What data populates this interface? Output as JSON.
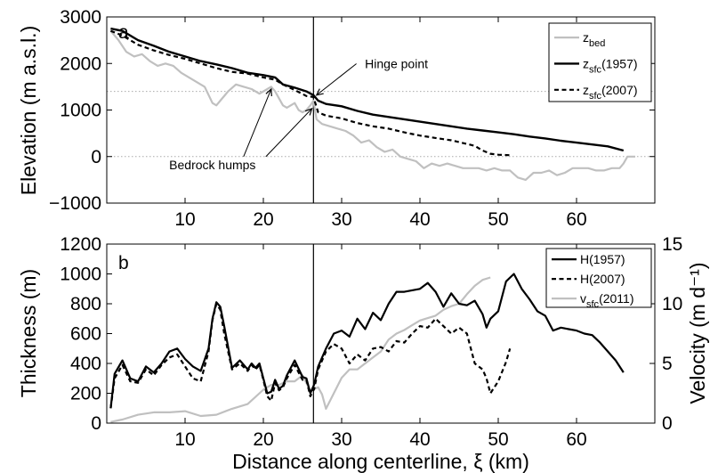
{
  "chart_data": [
    {
      "panel_label": "a",
      "type": "line",
      "xlabel": "",
      "ylabel": "Elevation (m a.s.l.)",
      "xlim": [
        0,
        70
      ],
      "ylim": [
        -1000,
        3000
      ],
      "xticks": [
        10,
        20,
        30,
        40,
        50,
        60
      ],
      "yticks": [
        -1000,
        0,
        1000,
        2000,
        3000
      ],
      "reference_lines": [
        {
          "axis": "y",
          "value": 1400,
          "style": "dotted",
          "color": "#aaaaaa"
        },
        {
          "axis": "y",
          "value": 0,
          "style": "dotted",
          "color": "#aaaaaa"
        },
        {
          "axis": "x",
          "value": 26.4,
          "style": "solid",
          "color": "#000000"
        }
      ],
      "annotations": [
        {
          "text": "Hinge point",
          "x": 37,
          "y": 1900,
          "arrow_to": {
            "x": 26.8,
            "y": 1320
          }
        },
        {
          "text": "Bedrock humps",
          "x": 13.5,
          "y": -270,
          "arrows_to": [
            {
              "x": 21,
              "y": 1450
            },
            {
              "x": 26.2,
              "y": 1030
            }
          ]
        }
      ],
      "legend": {
        "position": "top-right",
        "entries": [
          {
            "base": "z",
            "sub": "bed",
            "tail": ""
          },
          {
            "base": "z",
            "sub": "sfc",
            "tail": "(1957)"
          },
          {
            "base": "z",
            "sub": "sfc",
            "tail": "(2007)"
          }
        ]
      },
      "series": [
        {
          "name": "z_bed",
          "color": "#c0c0c0",
          "dash": "solid",
          "width": 2.2,
          "x": [
            0.5,
            1.5,
            2.5,
            3.5,
            4.5,
            5.5,
            6.5,
            7.5,
            8.5,
            9.5,
            10.5,
            11.5,
            12.5,
            13.5,
            14,
            14.5,
            15.5,
            16.5,
            17.5,
            18.5,
            19.5,
            20.5,
            21,
            21.5,
            22,
            22.5,
            23,
            23.5,
            24,
            24.5,
            25,
            25.5,
            26,
            26.4,
            26.8,
            27.5,
            28.5,
            29.5,
            30.5,
            31.5,
            32.5,
            33.5,
            34.5,
            35.5,
            36.5,
            37.5,
            38.5,
            39.5,
            40.5,
            41.5,
            42.5,
            43.5,
            44.5,
            45.5,
            46.5,
            47.5,
            48.5,
            49.5,
            50.5,
            51.5,
            52.5,
            53.5,
            54.5,
            55.5,
            56.5,
            57.5,
            58.5,
            59.5,
            60.5,
            61.5,
            62.5,
            63.5,
            64.5,
            65.5,
            66,
            66.5,
            67.5
          ],
          "y": [
            2700,
            2500,
            2250,
            2150,
            2200,
            2050,
            1950,
            2000,
            1950,
            1800,
            1700,
            1600,
            1500,
            1150,
            1100,
            1200,
            1400,
            1550,
            1500,
            1450,
            1350,
            1450,
            1500,
            1400,
            1250,
            1100,
            1050,
            1100,
            1150,
            1000,
            950,
            1000,
            1100,
            1200,
            800,
            700,
            650,
            600,
            550,
            450,
            300,
            350,
            200,
            100,
            150,
            0,
            -50,
            -100,
            -250,
            -150,
            -200,
            -150,
            -200,
            -250,
            -250,
            -250,
            -300,
            -250,
            -300,
            -300,
            -450,
            -500,
            -350,
            -350,
            -300,
            -400,
            -350,
            -250,
            -250,
            -250,
            -300,
            -300,
            -250,
            -250,
            -150,
            0,
            0
          ]
        },
        {
          "name": "z_sfc(1957)",
          "color": "#000000",
          "dash": "solid",
          "width": 2.4,
          "x": [
            0.5,
            2,
            4,
            6,
            8,
            10,
            12,
            14,
            16,
            18,
            20,
            21.5,
            22.5,
            24,
            25.5,
            26.4,
            27,
            28,
            30,
            32,
            34,
            36,
            38,
            40,
            42,
            44,
            46,
            48,
            50,
            52,
            54,
            56,
            58,
            60,
            62,
            64,
            66
          ],
          "y": [
            2750,
            2700,
            2500,
            2380,
            2250,
            2150,
            2050,
            1980,
            1900,
            1800,
            1750,
            1700,
            1550,
            1480,
            1400,
            1320,
            1200,
            1130,
            1080,
            980,
            900,
            850,
            800,
            750,
            700,
            650,
            600,
            560,
            520,
            480,
            430,
            390,
            340,
            300,
            260,
            220,
            130
          ]
        },
        {
          "name": "z_sfc(2007)",
          "color": "#000000",
          "dash": "5,3.5",
          "width": 2.2,
          "x": [
            0.5,
            2,
            4,
            6,
            8,
            10,
            12,
            14,
            16,
            18,
            20,
            21.5,
            22.5,
            24,
            25.5,
            26.4,
            27,
            28,
            30,
            32,
            34,
            36,
            38,
            40,
            42,
            44,
            46,
            47,
            48,
            49,
            50,
            51.5
          ],
          "y": [
            2700,
            2600,
            2400,
            2280,
            2180,
            2100,
            2000,
            1900,
            1820,
            1780,
            1700,
            1650,
            1550,
            1430,
            1300,
            1280,
            950,
            880,
            820,
            720,
            650,
            600,
            520,
            450,
            400,
            350,
            270,
            230,
            130,
            60,
            40,
            30
          ]
        }
      ]
    },
    {
      "panel_label": "b",
      "type": "line",
      "xlabel": "Distance along centerline, ξ (km)",
      "ylabel": "Thickness (m)",
      "ylabel_right": "Velocity (m d⁻¹)",
      "xlim": [
        0,
        70
      ],
      "ylim": [
        0,
        1200
      ],
      "ylim_right": [
        0,
        15
      ],
      "xticks": [
        10,
        20,
        30,
        40,
        50,
        60
      ],
      "yticks": [
        0,
        200,
        400,
        600,
        800,
        1000,
        1200
      ],
      "yticks_right": [
        0,
        5,
        10,
        15
      ],
      "reference_lines": [
        {
          "axis": "x",
          "value": 26.4,
          "style": "solid",
          "color": "#000000"
        }
      ],
      "legend": {
        "position": "top-right",
        "entries": [
          {
            "base": "H(1957)",
            "sub": "",
            "tail": ""
          },
          {
            "base": "H(2007)",
            "sub": "",
            "tail": ""
          },
          {
            "base": "v",
            "sub": "sfc",
            "tail": "(2011)"
          }
        ]
      },
      "series": [
        {
          "name": "v_sfc(2011)",
          "axis": "right",
          "color": "#c0c0c0",
          "dash": "solid",
          "width": 2.2,
          "x": [
            0.5,
            2,
            4,
            6,
            8,
            10,
            12,
            14,
            16,
            18,
            20,
            21,
            22,
            23,
            24,
            25,
            26,
            27,
            27.5,
            28,
            29,
            30,
            31,
            32,
            33,
            34,
            35,
            36,
            37,
            38,
            39,
            40,
            41,
            42,
            43,
            44,
            45,
            46,
            47,
            48,
            49
          ],
          "y": [
            0.1,
            0.3,
            0.7,
            0.9,
            0.9,
            1.0,
            0.6,
            0.7,
            1.2,
            1.6,
            2.8,
            3.2,
            3.2,
            3.5,
            3.5,
            4.0,
            2.7,
            3.0,
            2.4,
            1.2,
            2.5,
            3.8,
            4.5,
            4.5,
            5.0,
            5.5,
            6.0,
            7.0,
            7.5,
            7.8,
            8.2,
            8.6,
            8.8,
            9.0,
            9.5,
            9.8,
            10.0,
            10.8,
            11.5,
            12.0,
            12.2
          ]
        },
        {
          "name": "H(1957)",
          "axis": "left",
          "color": "#000000",
          "dash": "solid",
          "width": 2.2,
          "x": [
            0.5,
            1,
            2,
            3,
            4,
            5,
            6,
            7,
            8,
            9,
            10,
            11,
            12,
            13,
            13.5,
            14,
            14.5,
            15,
            16,
            17,
            18,
            18.5,
            19,
            19.5,
            20,
            20.5,
            21,
            21.5,
            22,
            22.5,
            23,
            24,
            25,
            25.5,
            26,
            26.5,
            27,
            28,
            29,
            30,
            31,
            32,
            33,
            34,
            35,
            36,
            37,
            38,
            39,
            40,
            41,
            42,
            43,
            44,
            45,
            46,
            47,
            48,
            48.5,
            49,
            50,
            51,
            52,
            53,
            54,
            55,
            56,
            57,
            58,
            59,
            60,
            61,
            62,
            63,
            64,
            65,
            66
          ],
          "y": [
            100,
            330,
            420,
            300,
            280,
            380,
            340,
            400,
            480,
            500,
            430,
            380,
            350,
            500,
            700,
            810,
            780,
            650,
            370,
            420,
            360,
            400,
            370,
            400,
            300,
            200,
            210,
            290,
            230,
            250,
            320,
            420,
            310,
            300,
            200,
            260,
            380,
            500,
            600,
            620,
            580,
            700,
            630,
            740,
            690,
            800,
            880,
            880,
            890,
            900,
            940,
            880,
            780,
            870,
            800,
            790,
            820,
            730,
            640,
            700,
            750,
            950,
            1000,
            900,
            830,
            750,
            720,
            620,
            640,
            630,
            620,
            600,
            590,
            540,
            480,
            420,
            340
          ]
        },
        {
          "name": "H(2007)",
          "axis": "left",
          "color": "#000000",
          "dash": "5,3.5",
          "width": 2.2,
          "x": [
            0.5,
            1,
            2,
            3,
            4,
            5,
            6,
            7,
            8,
            9,
            10,
            11,
            12,
            13,
            13.5,
            14,
            14.5,
            15,
            16,
            17,
            18,
            18.5,
            19,
            19.5,
            20,
            20.5,
            21,
            21.5,
            22,
            22.5,
            23,
            24,
            25,
            25.5,
            26,
            26.5,
            27,
            28,
            29,
            30,
            31,
            32,
            33,
            34,
            35,
            36,
            37,
            38,
            39,
            40,
            41,
            42,
            43,
            44,
            45,
            46,
            47,
            48,
            48.5,
            49,
            50,
            51,
            51.5
          ],
          "y": [
            100,
            300,
            390,
            280,
            270,
            360,
            320,
            390,
            440,
            460,
            380,
            300,
            280,
            480,
            690,
            800,
            760,
            600,
            360,
            400,
            350,
            390,
            360,
            390,
            290,
            180,
            150,
            270,
            220,
            240,
            300,
            390,
            290,
            290,
            180,
            230,
            360,
            480,
            530,
            500,
            400,
            460,
            420,
            500,
            510,
            480,
            550,
            540,
            600,
            650,
            640,
            700,
            650,
            600,
            640,
            600,
            400,
            360,
            300,
            200,
            280,
            410,
            500
          ]
        }
      ]
    }
  ]
}
